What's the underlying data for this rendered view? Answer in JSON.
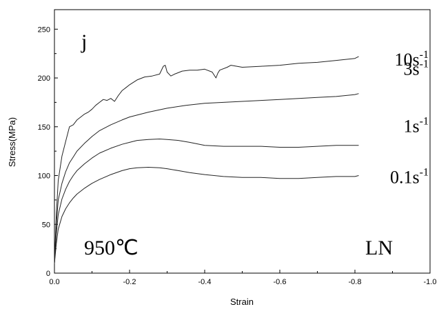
{
  "chart_data": {
    "type": "line",
    "xlabel": "Strain",
    "ylabel": "Stress(MPa)",
    "xlim": [
      0.0,
      -1.0
    ],
    "ylim": [
      0,
      270
    ],
    "x_ticks": [
      0.0,
      -0.2,
      -0.4,
      -0.6,
      -0.8,
      -1.0
    ],
    "x_tick_labels": [
      "0.0",
      "-0.2",
      "-0.4",
      "-0.6",
      "-0.8",
      "-1.0"
    ],
    "y_ticks": [
      0,
      50,
      100,
      150,
      200,
      250
    ],
    "y_tick_labels": [
      "0",
      "50",
      "100",
      "150",
      "200",
      "250"
    ],
    "grid": false,
    "panel_label": "j",
    "annotations": {
      "temperature": "950℃",
      "condition": "LN"
    },
    "series": [
      {
        "name": "10s-1",
        "label_main": "10s",
        "label_sup": "-1",
        "x": [
          0.0,
          -0.005,
          -0.01,
          -0.02,
          -0.03,
          -0.04,
          -0.05,
          -0.06,
          -0.07,
          -0.08,
          -0.09,
          -0.1,
          -0.11,
          -0.12,
          -0.13,
          -0.14,
          -0.15,
          -0.16,
          -0.17,
          -0.18,
          -0.19,
          -0.2,
          -0.22,
          -0.24,
          -0.26,
          -0.28,
          -0.29,
          -0.295,
          -0.3,
          -0.31,
          -0.32,
          -0.34,
          -0.36,
          -0.38,
          -0.4,
          -0.42,
          -0.43,
          -0.435,
          -0.44,
          -0.46,
          -0.47,
          -0.5,
          -0.55,
          -0.6,
          -0.65,
          -0.7,
          -0.75,
          -0.8,
          -0.81
        ],
        "y": [
          10,
          60,
          95,
          120,
          135,
          150,
          152,
          157,
          160,
          163,
          165,
          168,
          172,
          175,
          178,
          177,
          179,
          176,
          182,
          187,
          190,
          193,
          198,
          201,
          202,
          204,
          212,
          213,
          206,
          202,
          204,
          207,
          208,
          208,
          209,
          206,
          200,
          205,
          208,
          211,
          213,
          211,
          212,
          213,
          215,
          216,
          218,
          220,
          222
        ]
      },
      {
        "name": "3s-1",
        "label_main": "3s",
        "label_sup": "-1",
        "x": [
          0.0,
          -0.005,
          -0.01,
          -0.02,
          -0.03,
          -0.04,
          -0.05,
          -0.06,
          -0.08,
          -0.1,
          -0.12,
          -0.15,
          -0.18,
          -0.2,
          -0.25,
          -0.3,
          -0.35,
          -0.4,
          -0.45,
          -0.5,
          -0.55,
          -0.6,
          -0.65,
          -0.7,
          -0.75,
          -0.8,
          -0.81
        ],
        "y": [
          10,
          50,
          75,
          92,
          104,
          113,
          119,
          125,
          133,
          140,
          146,
          152,
          157,
          160,
          165,
          169,
          172,
          174,
          175,
          176,
          177,
          178,
          179,
          180,
          181,
          183,
          184
        ]
      },
      {
        "name": "1s-1",
        "label_main": "1s",
        "label_sup": "-1",
        "x": [
          0.0,
          -0.005,
          -0.01,
          -0.02,
          -0.03,
          -0.04,
          -0.05,
          -0.06,
          -0.08,
          -0.1,
          -0.12,
          -0.15,
          -0.18,
          -0.2,
          -0.22,
          -0.25,
          -0.28,
          -0.3,
          -0.33,
          -0.36,
          -0.4,
          -0.45,
          -0.5,
          -0.55,
          -0.6,
          -0.65,
          -0.7,
          -0.75,
          -0.8,
          -0.81
        ],
        "y": [
          10,
          40,
          60,
          76,
          86,
          94,
          100,
          105,
          112,
          118,
          123,
          128,
          132,
          134,
          136,
          137,
          137.5,
          137,
          136,
          134,
          131,
          130,
          130,
          130,
          129,
          129,
          130,
          131,
          131,
          131
        ]
      },
      {
        "name": "0.1s-1",
        "label_main": "0.1s",
        "label_sup": "-1",
        "x": [
          0.0,
          -0.005,
          -0.01,
          -0.02,
          -0.03,
          -0.04,
          -0.05,
          -0.06,
          -0.08,
          -0.1,
          -0.12,
          -0.15,
          -0.18,
          -0.2,
          -0.22,
          -0.25,
          -0.28,
          -0.3,
          -0.33,
          -0.36,
          -0.4,
          -0.45,
          -0.5,
          -0.55,
          -0.6,
          -0.65,
          -0.7,
          -0.75,
          -0.8,
          -0.81
        ],
        "y": [
          10,
          30,
          45,
          58,
          66,
          72,
          77,
          81,
          87,
          92,
          96,
          101,
          105,
          107,
          108,
          108.5,
          108,
          107,
          105,
          103,
          101,
          99,
          98,
          98,
          97,
          97,
          98,
          99,
          99,
          100
        ]
      }
    ]
  }
}
